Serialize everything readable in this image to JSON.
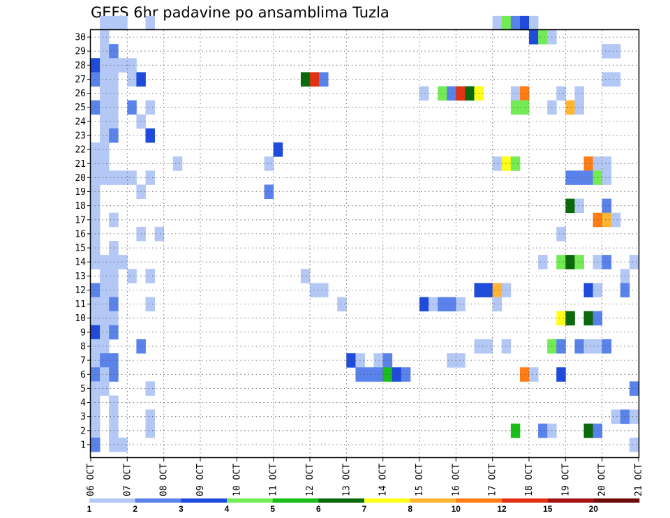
{
  "chart_data": {
    "type": "heatmap",
    "title": "GEFS 6hr padavine po ansamblima Tuzla",
    "xlabel": "",
    "ylabel": "",
    "x_tick_labels": [
      "06 OCT",
      "07 OCT",
      "08 OCT",
      "09 OCT",
      "10 OCT",
      "11 OCT",
      "12 OCT",
      "13 OCT",
      "14 OCT",
      "15 OCT",
      "16 OCT",
      "17 OCT",
      "18 OCT",
      "19 OCT",
      "20 OCT",
      "21 OCT"
    ],
    "x_unit": "6-hour steps from 06 OCT 00Z",
    "xlim": [
      0,
      60
    ],
    "y_tick_labels": [
      "1",
      "2",
      "3",
      "4",
      "5",
      "6",
      "7",
      "8",
      "9",
      "10",
      "11",
      "12",
      "13",
      "14",
      "15",
      "16",
      "17",
      "18",
      "19",
      "20",
      "21",
      "22",
      "23",
      "24",
      "25",
      "26",
      "27",
      "28",
      "29",
      "30"
    ],
    "ylim": [
      0,
      30
    ],
    "grid": true,
    "colorbar": {
      "labels": [
        "1",
        "2",
        "3",
        "4",
        "5",
        "6",
        "7",
        "8",
        "10",
        "12",
        "15",
        "20"
      ],
      "colors": [
        "#b4c8f5",
        "#5a82eb",
        "#1e4bdc",
        "#73eb55",
        "#19be19",
        "#0a690a",
        "#ffff19",
        "#ffb432",
        "#ff7d14",
        "#e13214",
        "#a51414",
        "#6e0a0a"
      ]
    },
    "cells": [
      [
        1,
        30,
        0
      ],
      [
        2,
        30,
        0
      ],
      [
        3,
        30,
        0
      ],
      [
        6,
        30,
        0
      ],
      [
        44,
        30,
        0
      ],
      [
        45,
        30,
        3
      ],
      [
        46,
        30,
        1
      ],
      [
        47,
        30,
        2
      ],
      [
        48,
        30,
        0
      ],
      [
        1,
        29,
        0
      ],
      [
        48,
        29,
        2
      ],
      [
        49,
        29,
        3
      ],
      [
        50,
        29,
        0
      ],
      [
        1,
        28,
        0
      ],
      [
        2,
        28,
        1
      ],
      [
        56,
        28,
        0
      ],
      [
        57,
        28,
        0
      ],
      [
        0,
        27,
        2
      ],
      [
        1,
        27,
        0
      ],
      [
        2,
        27,
        0
      ],
      [
        3,
        27,
        0
      ],
      [
        4,
        27,
        0
      ],
      [
        0,
        26,
        1
      ],
      [
        1,
        26,
        0
      ],
      [
        2,
        26,
        0
      ],
      [
        4,
        26,
        0
      ],
      [
        5,
        26,
        2
      ],
      [
        23,
        26,
        5
      ],
      [
        24,
        26,
        9
      ],
      [
        25,
        26,
        1
      ],
      [
        56,
        26,
        0
      ],
      [
        57,
        26,
        0
      ],
      [
        1,
        25,
        0
      ],
      [
        2,
        25,
        0
      ],
      [
        36,
        25,
        0
      ],
      [
        38,
        25,
        3
      ],
      [
        39,
        25,
        1
      ],
      [
        40,
        25,
        9
      ],
      [
        41,
        25,
        5
      ],
      [
        42,
        25,
        6
      ],
      [
        46,
        25,
        0
      ],
      [
        47,
        25,
        8
      ],
      [
        51,
        25,
        0
      ],
      [
        53,
        25,
        0
      ],
      [
        0,
        24,
        1
      ],
      [
        1,
        24,
        0
      ],
      [
        2,
        24,
        0
      ],
      [
        4,
        24,
        1
      ],
      [
        6,
        24,
        0
      ],
      [
        46,
        24,
        3
      ],
      [
        47,
        24,
        3
      ],
      [
        50,
        24,
        0
      ],
      [
        52,
        24,
        7
      ],
      [
        53,
        24,
        0
      ],
      [
        1,
        23,
        0
      ],
      [
        2,
        23,
        0
      ],
      [
        5,
        23,
        0
      ],
      [
        1,
        22,
        0
      ],
      [
        2,
        22,
        1
      ],
      [
        6,
        22,
        2
      ],
      [
        0,
        21,
        0
      ],
      [
        1,
        21,
        0
      ],
      [
        20,
        21,
        2
      ],
      [
        0,
        20,
        0
      ],
      [
        1,
        20,
        0
      ],
      [
        9,
        20,
        0
      ],
      [
        19,
        20,
        0
      ],
      [
        44,
        20,
        0
      ],
      [
        45,
        20,
        6
      ],
      [
        46,
        20,
        3
      ],
      [
        54,
        20,
        8
      ],
      [
        55,
        20,
        0
      ],
      [
        56,
        20,
        0
      ],
      [
        0,
        19,
        0
      ],
      [
        1,
        19,
        0
      ],
      [
        2,
        19,
        0
      ],
      [
        3,
        19,
        0
      ],
      [
        4,
        19,
        0
      ],
      [
        6,
        19,
        0
      ],
      [
        52,
        19,
        1
      ],
      [
        53,
        19,
        1
      ],
      [
        54,
        19,
        1
      ],
      [
        55,
        19,
        3
      ],
      [
        56,
        19,
        0
      ],
      [
        0,
        18,
        0
      ],
      [
        5,
        18,
        0
      ],
      [
        19,
        18,
        1
      ],
      [
        0,
        17,
        0
      ],
      [
        52,
        17,
        5
      ],
      [
        53,
        17,
        0
      ],
      [
        56,
        17,
        1
      ],
      [
        0,
        16,
        0
      ],
      [
        2,
        16,
        0
      ],
      [
        55,
        16,
        8
      ],
      [
        56,
        16,
        7
      ],
      [
        57,
        16,
        0
      ],
      [
        0,
        15,
        0
      ],
      [
        5,
        15,
        0
      ],
      [
        7,
        15,
        0
      ],
      [
        51,
        15,
        0
      ],
      [
        0,
        14,
        0
      ],
      [
        2,
        14,
        0
      ],
      [
        0,
        13,
        0
      ],
      [
        1,
        13,
        0
      ],
      [
        2,
        13,
        0
      ],
      [
        3,
        13,
        0
      ],
      [
        49,
        13,
        0
      ],
      [
        51,
        13,
        3
      ],
      [
        52,
        13,
        5
      ],
      [
        53,
        13,
        3
      ],
      [
        55,
        13,
        0
      ],
      [
        56,
        13,
        1
      ],
      [
        59,
        13,
        0
      ],
      [
        1,
        12,
        0
      ],
      [
        2,
        12,
        0
      ],
      [
        4,
        12,
        0
      ],
      [
        6,
        12,
        0
      ],
      [
        23,
        12,
        0
      ],
      [
        58,
        12,
        0
      ],
      [
        0,
        11,
        1
      ],
      [
        1,
        11,
        0
      ],
      [
        2,
        11,
        0
      ],
      [
        24,
        11,
        0
      ],
      [
        25,
        11,
        0
      ],
      [
        42,
        11,
        2
      ],
      [
        43,
        11,
        2
      ],
      [
        44,
        11,
        7
      ],
      [
        45,
        11,
        0
      ],
      [
        54,
        11,
        2
      ],
      [
        55,
        11,
        0
      ],
      [
        58,
        11,
        1
      ],
      [
        0,
        10,
        0
      ],
      [
        1,
        10,
        0
      ],
      [
        2,
        10,
        1
      ],
      [
        6,
        10,
        0
      ],
      [
        27,
        10,
        0
      ],
      [
        36,
        10,
        2
      ],
      [
        37,
        10,
        0
      ],
      [
        38,
        10,
        1
      ],
      [
        39,
        10,
        1
      ],
      [
        40,
        10,
        0
      ],
      [
        44,
        10,
        0
      ],
      [
        0,
        9,
        0
      ],
      [
        1,
        9,
        0
      ],
      [
        2,
        9,
        0
      ],
      [
        51,
        9,
        6
      ],
      [
        52,
        9,
        5
      ],
      [
        54,
        9,
        5
      ],
      [
        55,
        9,
        1
      ],
      [
        0,
        8,
        2
      ],
      [
        1,
        8,
        0
      ],
      [
        2,
        8,
        1
      ],
      [
        0,
        7,
        0
      ],
      [
        1,
        7,
        0
      ],
      [
        5,
        7,
        1
      ],
      [
        42,
        7,
        0
      ],
      [
        43,
        7,
        0
      ],
      [
        45,
        7,
        0
      ],
      [
        50,
        7,
        3
      ],
      [
        51,
        7,
        1
      ],
      [
        53,
        7,
        1
      ],
      [
        54,
        7,
        0
      ],
      [
        55,
        7,
        0
      ],
      [
        56,
        7,
        1
      ],
      [
        0,
        6,
        0
      ],
      [
        1,
        6,
        1
      ],
      [
        2,
        6,
        1
      ],
      [
        28,
        6,
        2
      ],
      [
        29,
        6,
        0
      ],
      [
        31,
        6,
        0
      ],
      [
        32,
        6,
        1
      ],
      [
        39,
        6,
        0
      ],
      [
        40,
        6,
        0
      ],
      [
        0,
        5,
        1
      ],
      [
        1,
        5,
        0
      ],
      [
        2,
        5,
        1
      ],
      [
        29,
        5,
        1
      ],
      [
        30,
        5,
        1
      ],
      [
        31,
        5,
        1
      ],
      [
        32,
        5,
        4
      ],
      [
        33,
        5,
        2
      ],
      [
        34,
        5,
        1
      ],
      [
        47,
        5,
        8
      ],
      [
        48,
        5,
        0
      ],
      [
        51,
        5,
        2
      ],
      [
        0,
        4,
        0
      ],
      [
        1,
        4,
        0
      ],
      [
        6,
        4,
        0
      ],
      [
        59,
        4,
        1
      ],
      [
        0,
        3,
        0
      ],
      [
        2,
        3,
        0
      ],
      [
        0,
        2,
        0
      ],
      [
        2,
        2,
        0
      ],
      [
        6,
        2,
        0
      ],
      [
        57,
        2,
        0
      ],
      [
        58,
        2,
        1
      ],
      [
        59,
        2,
        0
      ],
      [
        0,
        1,
        0
      ],
      [
        2,
        1,
        0
      ],
      [
        6,
        1,
        0
      ],
      [
        46,
        1,
        4
      ],
      [
        49,
        1,
        1
      ],
      [
        50,
        1,
        0
      ],
      [
        54,
        1,
        5
      ],
      [
        55,
        1,
        1
      ],
      [
        0,
        0,
        1
      ],
      [
        2,
        0,
        0
      ],
      [
        3,
        0,
        0
      ],
      [
        59,
        0,
        0
      ]
    ]
  }
}
